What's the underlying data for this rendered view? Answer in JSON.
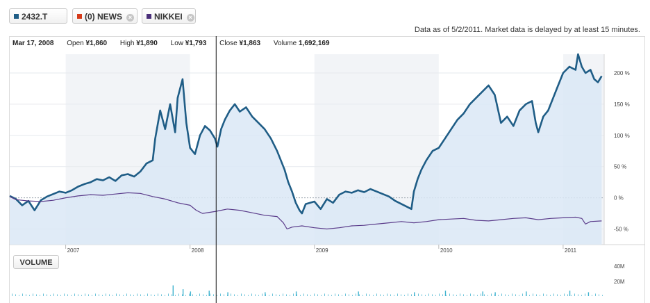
{
  "tabs": [
    {
      "label": "2432.T",
      "color": "#1f5d86",
      "closable": false
    },
    {
      "label": "(0) NEWS",
      "color": "#d63a1a",
      "closable": true
    },
    {
      "label": "NIKKEI",
      "color": "#4a2f7a",
      "closable": true
    }
  ],
  "close_glyph": "×",
  "note": "Data as of 5/2/2011. Market data is delayed by at least 15 minutes.",
  "quote": {
    "date": "Mar 17, 2008",
    "open_label": "Open",
    "open": "¥1,860",
    "high_label": "High",
    "high": "¥1,890",
    "low_label": "Low",
    "low": "¥1,793",
    "close_label": "Close",
    "close": "¥1,863",
    "volume_label": "Volume",
    "volume": "1,692,169"
  },
  "volume_button": "VOLUME",
  "chart_data": {
    "type": "line",
    "y_unit": "%",
    "ylim": [
      -75,
      230
    ],
    "y_ticks": [
      {
        "v": 200,
        "label": "200 %"
      },
      {
        "v": 150,
        "label": "150 %"
      },
      {
        "v": 100,
        "label": "100 %"
      },
      {
        "v": 50,
        "label": "50 %"
      },
      {
        "v": 0,
        "label": "0 %"
      },
      {
        "v": -50,
        "label": "-50 %"
      }
    ],
    "x_range": [
      2006.55,
      2011.33
    ],
    "x_ticks": [
      {
        "x": 2007,
        "label": "2007"
      },
      {
        "x": 2008,
        "label": "2008"
      },
      {
        "x": 2009,
        "label": "2009"
      },
      {
        "x": 2010,
        "label": "2010"
      },
      {
        "x": 2011,
        "label": "2011"
      }
    ],
    "year_bands": [
      [
        2007,
        2008
      ],
      [
        2009,
        2010
      ],
      [
        2011,
        2011.33
      ]
    ],
    "cursor_x": 2008.21,
    "series": [
      {
        "color": "#1f5d86",
        "fill": "#dbe8f6",
        "points": [
          [
            2006.55,
            3
          ],
          [
            2006.6,
            -2
          ],
          [
            2006.65,
            -12
          ],
          [
            2006.7,
            -5
          ],
          [
            2006.75,
            -20
          ],
          [
            2006.8,
            -4
          ],
          [
            2006.85,
            2
          ],
          [
            2006.9,
            6
          ],
          [
            2006.95,
            10
          ],
          [
            2007.0,
            8
          ],
          [
            2007.05,
            12
          ],
          [
            2007.1,
            18
          ],
          [
            2007.15,
            22
          ],
          [
            2007.2,
            25
          ],
          [
            2007.25,
            30
          ],
          [
            2007.3,
            28
          ],
          [
            2007.35,
            33
          ],
          [
            2007.4,
            27
          ],
          [
            2007.45,
            36
          ],
          [
            2007.5,
            38
          ],
          [
            2007.55,
            34
          ],
          [
            2007.6,
            42
          ],
          [
            2007.65,
            55
          ],
          [
            2007.7,
            60
          ],
          [
            2007.72,
            95
          ],
          [
            2007.76,
            140
          ],
          [
            2007.8,
            110
          ],
          [
            2007.84,
            150
          ],
          [
            2007.88,
            105
          ],
          [
            2007.9,
            160
          ],
          [
            2007.94,
            190
          ],
          [
            2007.97,
            120
          ],
          [
            2008.0,
            80
          ],
          [
            2008.04,
            70
          ],
          [
            2008.08,
            100
          ],
          [
            2008.12,
            115
          ],
          [
            2008.16,
            108
          ],
          [
            2008.2,
            95
          ],
          [
            2008.22,
            82
          ],
          [
            2008.25,
            110
          ],
          [
            2008.28,
            125
          ],
          [
            2008.32,
            140
          ],
          [
            2008.36,
            150
          ],
          [
            2008.4,
            138
          ],
          [
            2008.45,
            145
          ],
          [
            2008.5,
            130
          ],
          [
            2008.55,
            120
          ],
          [
            2008.6,
            110
          ],
          [
            2008.65,
            95
          ],
          [
            2008.7,
            75
          ],
          [
            2008.73,
            60
          ],
          [
            2008.76,
            45
          ],
          [
            2008.79,
            25
          ],
          [
            2008.82,
            10
          ],
          [
            2008.85,
            -8
          ],
          [
            2008.88,
            -20
          ],
          [
            2008.9,
            -25
          ],
          [
            2008.93,
            -10
          ],
          [
            2009.0,
            -6
          ],
          [
            2009.05,
            -18
          ],
          [
            2009.1,
            -2
          ],
          [
            2009.15,
            -8
          ],
          [
            2009.2,
            5
          ],
          [
            2009.25,
            10
          ],
          [
            2009.3,
            8
          ],
          [
            2009.35,
            12
          ],
          [
            2009.4,
            9
          ],
          [
            2009.45,
            14
          ],
          [
            2009.5,
            10
          ],
          [
            2009.55,
            6
          ],
          [
            2009.6,
            2
          ],
          [
            2009.65,
            -5
          ],
          [
            2009.7,
            -10
          ],
          [
            2009.75,
            -15
          ],
          [
            2009.78,
            -18
          ],
          [
            2009.8,
            10
          ],
          [
            2009.83,
            30
          ],
          [
            2009.86,
            45
          ],
          [
            2009.9,
            60
          ],
          [
            2009.95,
            75
          ],
          [
            2010.0,
            80
          ],
          [
            2010.05,
            95
          ],
          [
            2010.1,
            110
          ],
          [
            2010.15,
            125
          ],
          [
            2010.2,
            135
          ],
          [
            2010.25,
            150
          ],
          [
            2010.3,
            160
          ],
          [
            2010.35,
            170
          ],
          [
            2010.4,
            180
          ],
          [
            2010.45,
            165
          ],
          [
            2010.5,
            120
          ],
          [
            2010.55,
            130
          ],
          [
            2010.6,
            115
          ],
          [
            2010.65,
            140
          ],
          [
            2010.7,
            150
          ],
          [
            2010.75,
            155
          ],
          [
            2010.78,
            120
          ],
          [
            2010.8,
            105
          ],
          [
            2010.84,
            130
          ],
          [
            2010.88,
            140
          ],
          [
            2010.9,
            150
          ],
          [
            2010.95,
            175
          ],
          [
            2011.0,
            200
          ],
          [
            2011.05,
            210
          ],
          [
            2011.1,
            205
          ],
          [
            2011.12,
            230
          ],
          [
            2011.15,
            210
          ],
          [
            2011.18,
            200
          ],
          [
            2011.22,
            205
          ],
          [
            2011.25,
            190
          ],
          [
            2011.28,
            185
          ],
          [
            2011.31,
            195
          ]
        ]
      },
      {
        "color": "#5a3b8a",
        "fill": "",
        "points": [
          [
            2006.55,
            2
          ],
          [
            2006.6,
            -3
          ],
          [
            2006.7,
            -5
          ],
          [
            2006.8,
            -6
          ],
          [
            2006.9,
            -4
          ],
          [
            2007.0,
            0
          ],
          [
            2007.1,
            3
          ],
          [
            2007.2,
            5
          ],
          [
            2007.3,
            4
          ],
          [
            2007.4,
            6
          ],
          [
            2007.5,
            8
          ],
          [
            2007.6,
            7
          ],
          [
            2007.7,
            2
          ],
          [
            2007.8,
            -2
          ],
          [
            2007.9,
            -8
          ],
          [
            2008.0,
            -12
          ],
          [
            2008.05,
            -20
          ],
          [
            2008.1,
            -25
          ],
          [
            2008.2,
            -22
          ],
          [
            2008.3,
            -18
          ],
          [
            2008.4,
            -20
          ],
          [
            2008.5,
            -24
          ],
          [
            2008.6,
            -28
          ],
          [
            2008.7,
            -30
          ],
          [
            2008.75,
            -40
          ],
          [
            2008.78,
            -50
          ],
          [
            2008.82,
            -47
          ],
          [
            2008.9,
            -45
          ],
          [
            2009.0,
            -48
          ],
          [
            2009.1,
            -50
          ],
          [
            2009.2,
            -48
          ],
          [
            2009.3,
            -45
          ],
          [
            2009.4,
            -44
          ],
          [
            2009.5,
            -42
          ],
          [
            2009.6,
            -40
          ],
          [
            2009.7,
            -38
          ],
          [
            2009.8,
            -40
          ],
          [
            2009.9,
            -38
          ],
          [
            2010.0,
            -35
          ],
          [
            2010.1,
            -34
          ],
          [
            2010.2,
            -33
          ],
          [
            2010.3,
            -36
          ],
          [
            2010.4,
            -37
          ],
          [
            2010.5,
            -35
          ],
          [
            2010.6,
            -33
          ],
          [
            2010.7,
            -32
          ],
          [
            2010.8,
            -35
          ],
          [
            2010.9,
            -33
          ],
          [
            2011.0,
            -32
          ],
          [
            2011.1,
            -31
          ],
          [
            2011.15,
            -33
          ],
          [
            2011.18,
            -42
          ],
          [
            2011.22,
            -38
          ],
          [
            2011.31,
            -37
          ]
        ]
      }
    ],
    "volume_ticks": [
      {
        "v": 40,
        "label": "40M"
      },
      {
        "v": 20,
        "label": "20M"
      }
    ],
    "volume_spikes": [
      [
        2007.86,
        14
      ],
      [
        2007.94,
        9
      ],
      [
        2008.0,
        6
      ],
      [
        2008.15,
        7
      ],
      [
        2008.3,
        5
      ],
      [
        2008.6,
        5
      ],
      [
        2008.85,
        6
      ],
      [
        2009.35,
        6
      ],
      [
        2009.8,
        5
      ],
      [
        2010.05,
        7
      ],
      [
        2010.35,
        6
      ],
      [
        2010.45,
        5
      ],
      [
        2010.7,
        6
      ],
      [
        2011.05,
        7
      ],
      [
        2011.2,
        5
      ]
    ]
  }
}
